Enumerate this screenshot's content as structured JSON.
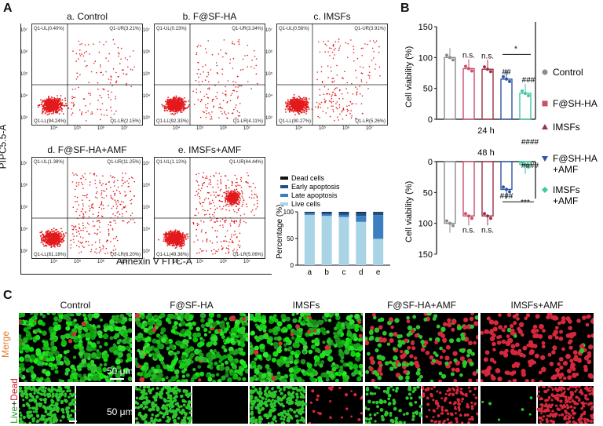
{
  "panels": {
    "a": "A",
    "b": "B",
    "c": "C"
  },
  "flow": {
    "y_axis_label": "PIPC5.5-A",
    "x_axis_label": "Annexin V FITC-A",
    "plots": [
      {
        "title": "a. Control",
        "ul": "Q1-UL(0.40%)",
        "ur": "Q1-UR(3.21%)",
        "ll": "Q1-LL(94.24%)",
        "lr": "Q1-LR(2.15%)",
        "late": 3.21,
        "early": 2.15
      },
      {
        "title": "b. F@SF-HA",
        "ul": "Q1-UL(0.23%)",
        "ur": "Q1-UR(3.34%)",
        "ll": "Q1-LL(92.33%)",
        "lr": "Q1-LR(4.11%)",
        "late": 3.34,
        "early": 4.11
      },
      {
        "title": "c. IMSFs",
        "ul": "Q1-UL(0.56%)",
        "ur": "Q1-UR(3.91%)",
        "ll": "Q1-LL(90.27%)",
        "lr": "Q1-LR(5.26%)",
        "late": 3.91,
        "early": 5.26
      },
      {
        "title": "d. F@SF-HA+AMF",
        "ul": "Q1-UL(1.38%)",
        "ur": "Q1-UR(11.25%)",
        "ll": "Q1-LL(81.18%)",
        "lr": "Q1-LR(6.20%)",
        "late": 11.25,
        "early": 6.2
      },
      {
        "title": "e. IMSFs+AMF",
        "ul": "Q1-UL(1.12%)",
        "ur": "Q1-UR(44.44%)",
        "ll": "Q1-LL(49.38%)",
        "lr": "Q1-LR(5.06%)",
        "late": 44.44,
        "early": 5.06
      }
    ],
    "y_ticks": [
      "10⁷",
      "10⁶",
      "10⁵",
      "10⁴",
      "10³"
    ],
    "x_ticks": [
      "10⁴",
      "10⁵",
      "10⁶",
      "10⁷"
    ]
  },
  "chart_data": [
    {
      "type": "bar",
      "stacked": true,
      "ylabel": "Percentage (%)",
      "categories": [
        "a",
        "b",
        "c",
        "d",
        "e"
      ],
      "ylim": [
        0,
        100
      ],
      "yticks": [
        "0",
        "50",
        "100"
      ],
      "legend_position": "top",
      "series": [
        {
          "name": "Live cells",
          "color": "#a8d4e6",
          "values": [
            94.24,
            92.33,
            90.27,
            81.18,
            49.38
          ]
        },
        {
          "name": "Late apoptosis",
          "color": "#3c7fc0",
          "values": [
            3.21,
            3.34,
            3.91,
            11.25,
            44.44
          ]
        },
        {
          "name": "Early apoptosis",
          "color": "#1f4e8a",
          "values": [
            2.15,
            4.11,
            5.26,
            6.2,
            5.06
          ]
        },
        {
          "name": "Dead cells",
          "color": "#111111",
          "values": [
            0.4,
            0.23,
            0.56,
            1.38,
            1.12
          ]
        }
      ]
    },
    {
      "type": "bar",
      "title_top": "24 h",
      "title_bottom": "48 h",
      "ylabel": "Cell viability (%)",
      "ylim": [
        0,
        150
      ],
      "yticks": [
        "0",
        "50",
        "100",
        "150"
      ],
      "categories": [
        "Control",
        "F@SH-HA",
        "IMSFs",
        "F@SH-HA\n+AMF",
        "IMSFs\n+AMF"
      ],
      "legend": [
        "Control",
        "F@SH-HA",
        "IMSFs",
        "F@SH-HA +AMF",
        "IMSFs +AMF"
      ],
      "colors": [
        "#8c8c8c",
        "#c9506a",
        "#9b3347",
        "#2d56a6",
        "#3cc9a3"
      ],
      "series": [
        {
          "name": "24 h",
          "values": [
            100,
            82,
            81,
            65,
            42
          ]
        },
        {
          "name": "48 h",
          "values": [
            100,
            88,
            88,
            45,
            5
          ]
        }
      ],
      "annotations_top": [
        "n.s.",
        "n.s.",
        "##",
        "*",
        "###"
      ],
      "annotations_bottom": [
        "n.s.",
        "n.s.",
        "###",
        "***",
        "####",
        "####"
      ]
    }
  ],
  "micro": {
    "columns": [
      "Control",
      "F@SF-HA",
      "IMSFs",
      "F@SF-HA+AMF",
      "IMSFs+AMF"
    ],
    "row_merge": "Merge",
    "row_live": "Live",
    "row_plus": "+",
    "row_dead": "Dead",
    "scale_top": "50 μm",
    "scale_bottom": "50 μm"
  }
}
